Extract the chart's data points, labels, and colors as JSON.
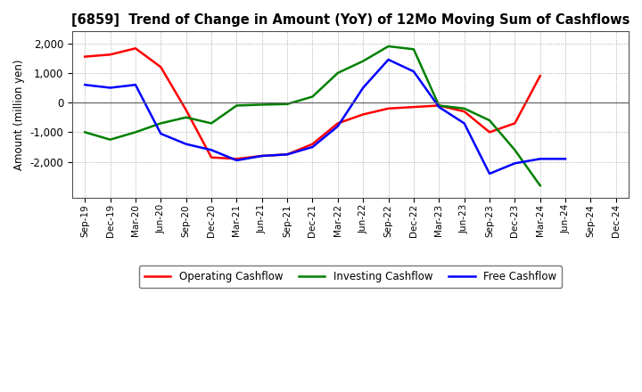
{
  "title": "[6859]  Trend of Change in Amount (YoY) of 12Mo Moving Sum of Cashflows",
  "ylabel": "Amount (million yen)",
  "x_labels": [
    "Sep-19",
    "Dec-19",
    "Mar-20",
    "Jun-20",
    "Sep-20",
    "Dec-20",
    "Mar-21",
    "Jun-21",
    "Sep-21",
    "Dec-21",
    "Mar-22",
    "Jun-22",
    "Sep-22",
    "Dec-22",
    "Mar-23",
    "Jun-23",
    "Sep-23",
    "Dec-23",
    "Mar-24",
    "Jun-24",
    "Sep-24",
    "Dec-24"
  ],
  "operating": [
    1550,
    1620,
    1830,
    1200,
    -250,
    -1850,
    -1900,
    -1800,
    -1750,
    -1400,
    -700,
    -400,
    -200,
    -150,
    -100,
    -300,
    -1000,
    -700,
    900,
    null,
    null,
    null
  ],
  "investing": [
    -1000,
    -1250,
    -1000,
    -700,
    -500,
    -700,
    -100,
    -70,
    -50,
    200,
    1000,
    1400,
    1900,
    1800,
    -100,
    -200,
    -600,
    -1600,
    -2800,
    null,
    null,
    null
  ],
  "free": [
    600,
    500,
    600,
    -1050,
    -1400,
    -1600,
    -1950,
    -1800,
    -1750,
    -1500,
    -800,
    500,
    1450,
    1050,
    -150,
    -700,
    -2400,
    -2050,
    -1900,
    -1900,
    null,
    null
  ],
  "operating_color": "#ff0000",
  "investing_color": "#008000",
  "free_color": "#0000ff",
  "ylim": [
    -3200,
    2400
  ],
  "yticks": [
    -2000,
    -1000,
    0,
    1000,
    2000
  ],
  "background_color": "#ffffff"
}
